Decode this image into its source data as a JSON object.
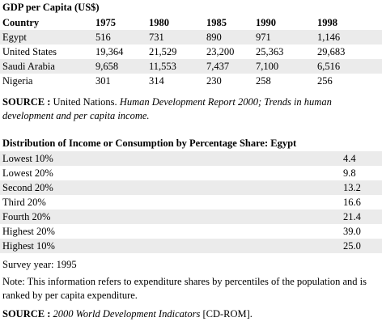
{
  "gdp": {
    "title": "GDP per Capita (US$)",
    "columns": [
      "Country",
      "1975",
      "1980",
      "1985",
      "1990",
      "1998"
    ],
    "rows": [
      [
        "Egypt",
        "516",
        "731",
        "890",
        "971",
        "1,146"
      ],
      [
        "United States",
        "19,364",
        "21,529",
        "23,200",
        "25,363",
        "29,683"
      ],
      [
        "Saudi Arabia",
        "9,658",
        "11,553",
        "7,437",
        "7,100",
        "6,516"
      ],
      [
        "Nigeria",
        "301",
        "314",
        "230",
        "258",
        "256"
      ]
    ],
    "source": {
      "label": "SOURCE :",
      "text": "United Nations.",
      "italic": "Human Development Report 2000; Trends in human development and per capita income."
    }
  },
  "distribution": {
    "title": "Distribution of Income or Consumption by Percentage Share: Egypt",
    "rows": [
      [
        "Lowest 10%",
        "4.4"
      ],
      [
        "Lowest 20%",
        "9.8"
      ],
      [
        "Second 20%",
        "13.2"
      ],
      [
        "Third 20%",
        "16.6"
      ],
      [
        "Fourth 20%",
        "21.4"
      ],
      [
        "Highest 20%",
        "39.0"
      ],
      [
        "Highest 10%",
        "25.0"
      ]
    ],
    "survey": "Survey year: 1995",
    "note": "Note: This information refers to expenditure shares by percentiles of the population and is ranked by per capita expenditure.",
    "source": {
      "label": "SOURCE :",
      "italic": "2000 World Development Indicators",
      "text": "[CD-ROM]."
    }
  }
}
